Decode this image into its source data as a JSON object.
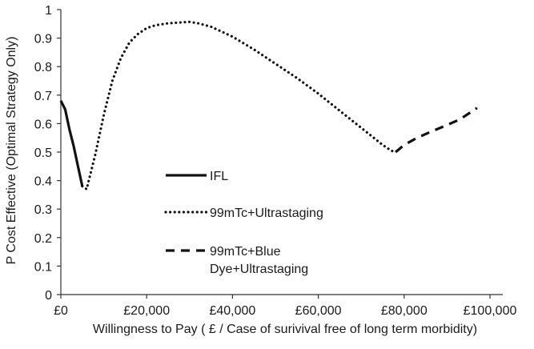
{
  "chart_data": {
    "type": "line",
    "xlabel": "Willingness to Pay ( £ / Case of surivival free of long term morbidity)",
    "ylabel": "P Cost Effective (Optimal Strategy Only)",
    "xlim": [
      0,
      100000
    ],
    "ylim": [
      0,
      1
    ],
    "x_ticks": [
      0,
      20000,
      40000,
      60000,
      80000,
      100000
    ],
    "x_tick_labels": [
      "£0",
      "£20,000",
      "£40,000",
      "£60,000",
      "£80,000",
      "£100,000"
    ],
    "y_ticks": [
      0,
      0.1,
      0.2,
      0.3,
      0.4,
      0.5,
      0.6,
      0.7,
      0.8,
      0.9,
      1
    ],
    "y_tick_labels": [
      "0",
      "0.1",
      "0.2",
      "0.3",
      "0.4",
      "0.5",
      "0.6",
      "0.7",
      "0.8",
      "0.9",
      "1"
    ],
    "grid": false,
    "legend_position": "center",
    "series": [
      {
        "name": "IFL",
        "style": "solid",
        "color": "#111111",
        "points": [
          [
            0,
            0.68
          ],
          [
            1000,
            0.65
          ],
          [
            2000,
            0.58
          ],
          [
            3000,
            0.52
          ],
          [
            4000,
            0.45
          ],
          [
            5000,
            0.38
          ]
        ]
      },
      {
        "name": "99mTc+Ultrastaging",
        "style": "dotted",
        "color": "#111111",
        "points": [
          [
            5000,
            0.38
          ],
          [
            6000,
            0.37
          ],
          [
            8000,
            0.49
          ],
          [
            10000,
            0.63
          ],
          [
            12000,
            0.75
          ],
          [
            14000,
            0.83
          ],
          [
            16000,
            0.885
          ],
          [
            18000,
            0.915
          ],
          [
            20000,
            0.935
          ],
          [
            22000,
            0.945
          ],
          [
            25000,
            0.952
          ],
          [
            28000,
            0.955
          ],
          [
            30000,
            0.957
          ],
          [
            32000,
            0.952
          ],
          [
            35000,
            0.94
          ],
          [
            40000,
            0.905
          ],
          [
            45000,
            0.86
          ],
          [
            50000,
            0.81
          ],
          [
            55000,
            0.76
          ],
          [
            60000,
            0.705
          ],
          [
            65000,
            0.645
          ],
          [
            70000,
            0.585
          ],
          [
            75000,
            0.525
          ],
          [
            77000,
            0.505
          ],
          [
            78000,
            0.5
          ]
        ]
      },
      {
        "name": "99mTc+Blue Dye+Ultrastaging",
        "legend_lines": [
          "99mTc+Blue",
          "Dye+Ultrastaging"
        ],
        "style": "dashed",
        "color": "#111111",
        "points": [
          [
            78000,
            0.5
          ],
          [
            80000,
            0.525
          ],
          [
            83000,
            0.55
          ],
          [
            86000,
            0.57
          ],
          [
            90000,
            0.595
          ],
          [
            93000,
            0.615
          ],
          [
            96000,
            0.645
          ],
          [
            97000,
            0.655
          ]
        ]
      }
    ]
  }
}
